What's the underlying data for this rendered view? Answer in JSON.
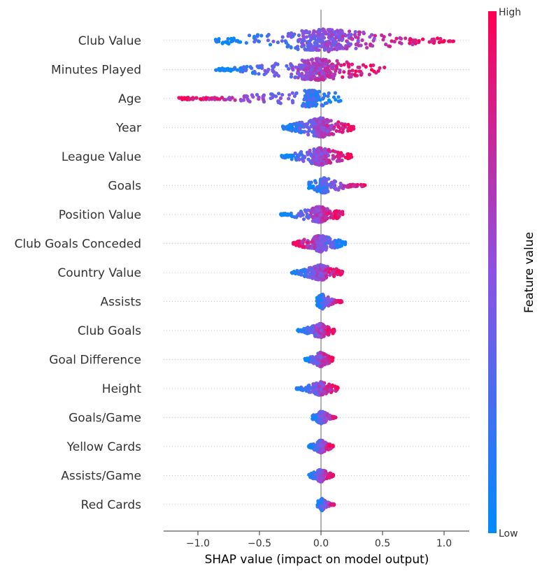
{
  "chart_data": {
    "type": "scatter",
    "subtype": "shap-beeswarm",
    "title": "",
    "xlabel": "SHAP value (impact on model output)",
    "ylabel": "",
    "xlim": [
      -1.28,
      1.3
    ],
    "xticks": [
      -1.0,
      -0.5,
      0.0,
      0.5,
      1.0
    ],
    "xtick_labels": [
      "−1.0",
      "−0.5",
      "0.0",
      "0.5",
      "1.0"
    ],
    "grid": false,
    "colorbar": {
      "title": "Feature value",
      "high_label": "High",
      "low_label": "Low",
      "low_color": "#008bfb",
      "mid_color": "#8c52e3",
      "high_color": "#ff0052"
    },
    "features": [
      {
        "name": "Club Value",
        "range": [
          -0.88,
          1.08
        ],
        "spread": 0.95
      },
      {
        "name": "Minutes Played",
        "range": [
          -0.86,
          0.52
        ],
        "spread": 0.9
      },
      {
        "name": "Age",
        "range": [
          -1.16,
          0.2
        ],
        "spread": 0.55
      },
      {
        "name": "Year",
        "range": [
          -0.32,
          0.27
        ],
        "spread": 0.75
      },
      {
        "name": "League Value",
        "range": [
          -0.32,
          0.25
        ],
        "spread": 0.6
      },
      {
        "name": "Goals",
        "range": [
          -0.1,
          0.36
        ],
        "spread": 0.45
      },
      {
        "name": "Position Value",
        "range": [
          -0.33,
          0.18
        ],
        "spread": 0.5
      },
      {
        "name": "Club Goals Conceded",
        "range": [
          -0.23,
          0.2
        ],
        "spread": 0.55
      },
      {
        "name": "Country Value",
        "range": [
          -0.24,
          0.18
        ],
        "spread": 0.5
      },
      {
        "name": "Assists",
        "range": [
          -0.04,
          0.17
        ],
        "spread": 0.4
      },
      {
        "name": "Club Goals",
        "range": [
          -0.19,
          0.11
        ],
        "spread": 0.4
      },
      {
        "name": "Goal Difference",
        "range": [
          -0.13,
          0.1
        ],
        "spread": 0.4
      },
      {
        "name": "Height",
        "range": [
          -0.2,
          0.14
        ],
        "spread": 0.35
      },
      {
        "name": "Goals/Game",
        "range": [
          -0.07,
          0.12
        ],
        "spread": 0.3
      },
      {
        "name": "Yellow Cards",
        "range": [
          -0.1,
          0.1
        ],
        "spread": 0.3
      },
      {
        "name": "Assists/Game",
        "range": [
          -0.1,
          0.1
        ],
        "spread": 0.3
      },
      {
        "name": "Red Cards",
        "range": [
          -0.03,
          0.11
        ],
        "spread": 0.25
      }
    ]
  }
}
